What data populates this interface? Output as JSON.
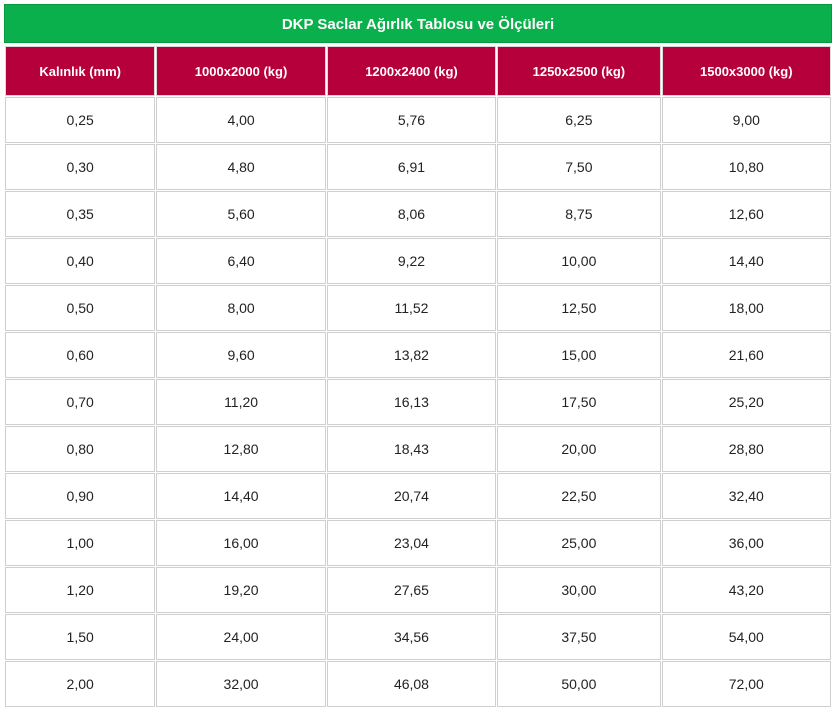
{
  "table": {
    "title": "DKP Saclar Ağırlık Tablosu ve Ölçüleri",
    "headers": [
      "Kalınlık (mm)",
      "1000x2000 (kg)",
      "1200x2400 (kg)",
      "1250x2500 (kg)",
      "1500x3000 (kg)"
    ],
    "rows": [
      [
        "0,25",
        "4,00",
        "5,76",
        "6,25",
        "9,00"
      ],
      [
        "0,30",
        "4,80",
        "6,91",
        "7,50",
        "10,80"
      ],
      [
        "0,35",
        "5,60",
        "8,06",
        "8,75",
        "12,60"
      ],
      [
        "0,40",
        "6,40",
        "9,22",
        "10,00",
        "14,40"
      ],
      [
        "0,50",
        "8,00",
        "11,52",
        "12,50",
        "18,00"
      ],
      [
        "0,60",
        "9,60",
        "13,82",
        "15,00",
        "21,60"
      ],
      [
        "0,70",
        "11,20",
        "16,13",
        "17,50",
        "25,20"
      ],
      [
        "0,80",
        "12,80",
        "18,43",
        "20,00",
        "28,80"
      ],
      [
        "0,90",
        "14,40",
        "20,74",
        "22,50",
        "32,40"
      ],
      [
        "1,00",
        "16,00",
        "23,04",
        "25,00",
        "36,00"
      ],
      [
        "1,20",
        "19,20",
        "27,65",
        "30,00",
        "43,20"
      ],
      [
        "1,50",
        "24,00",
        "34,56",
        "37,50",
        "54,00"
      ],
      [
        "2,00",
        "32,00",
        "46,08",
        "50,00",
        "72,00"
      ]
    ]
  }
}
